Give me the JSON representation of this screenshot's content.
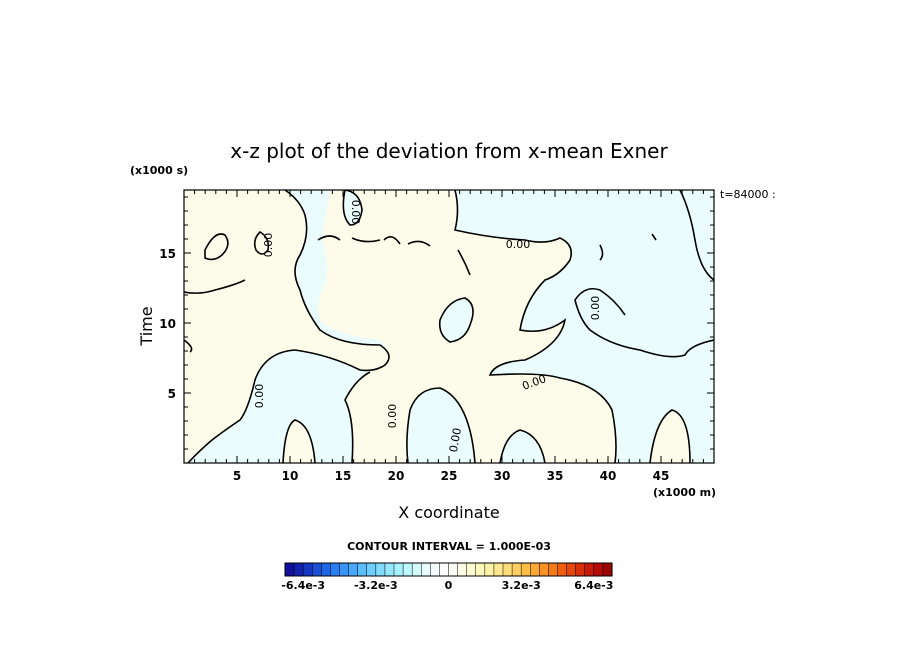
{
  "chart_data": {
    "type": "heatmap",
    "title": "x-z plot of the deviation from x-mean Exner",
    "xlabel": "X coordinate",
    "ylabel": "Time",
    "x_unit": "(x1000 m)",
    "y_unit": "(x1000 s)",
    "time_stamp": "t=84000 :",
    "xlim": [
      0,
      50
    ],
    "ylim": [
      0,
      19.5
    ],
    "x_ticks": [
      5,
      10,
      15,
      20,
      25,
      30,
      35,
      40,
      45
    ],
    "y_ticks": [
      5,
      10,
      15
    ],
    "contour_interval_text": "CONTOUR INTERVAL = 1.000E-03",
    "contour_value_label": "0.00",
    "regions": [
      {
        "sign": "negative",
        "level": "-1e-3",
        "color": "#eafcfc"
      },
      {
        "sign": "positive",
        "level": "+1e-3",
        "color": "#fdfcea"
      }
    ],
    "colorbar": {
      "min": -0.0072,
      "max": 0.0072,
      "step": 0.0004,
      "tick_labels": [
        "-6.4e-3",
        "-3.2e-3",
        "0",
        "3.2e-3",
        "6.4e-3"
      ],
      "tick_values": [
        -0.0064,
        -0.0032,
        0,
        0.0032,
        0.0064
      ],
      "colors": [
        "#10109a",
        "#1222ae",
        "#1538c2",
        "#1a4fd6",
        "#1e66e6",
        "#2a7ef0",
        "#3a94f6",
        "#4aa8fa",
        "#5cbcfc",
        "#6ecefe",
        "#80dcfe",
        "#94e8fe",
        "#a8f2fe",
        "#bcf8fe",
        "#d2fcfe",
        "#e6fefe",
        "#f6fefe",
        "#fefefe",
        "#fefef6",
        "#fefee6",
        "#fefcd2",
        "#fef8bc",
        "#fef2a8",
        "#fee890",
        "#fedc78",
        "#fece60",
        "#fcbc48",
        "#fba834",
        "#f89224",
        "#f47a18",
        "#ee6010",
        "#e4460c",
        "#d82e0a",
        "#c81a08",
        "#b40c06",
        "#9c0404"
      ]
    }
  }
}
